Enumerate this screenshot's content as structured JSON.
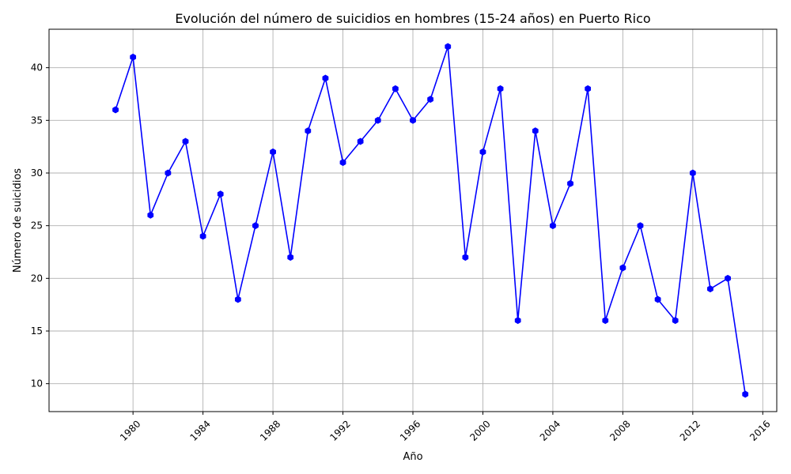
{
  "chart_data": {
    "type": "line",
    "title": "Evolución del número de suicidios en hombres (15-24 años) en Puerto Rico",
    "xlabel": "Año",
    "ylabel": "Número de suicidios",
    "xlim": [
      1975.2,
      2016.8
    ],
    "ylim": [
      7.35,
      43.65
    ],
    "x_ticks": [
      1980,
      1984,
      1988,
      1992,
      1996,
      2000,
      2004,
      2008,
      2012,
      2016
    ],
    "x_tick_labels": [
      "1980",
      "1984",
      "1988",
      "1992",
      "1996",
      "2000",
      "2004",
      "2008",
      "2012",
      "2016"
    ],
    "y_ticks": [
      10,
      15,
      20,
      25,
      30,
      35,
      40
    ],
    "y_tick_labels": [
      "10",
      "15",
      "20",
      "25",
      "30",
      "35",
      "40"
    ],
    "grid": true,
    "x_tick_rotation_deg": 45,
    "series": [
      {
        "color": "#0000ff",
        "marker": "hexagon",
        "x": [
          1979,
          1980,
          1981,
          1982,
          1983,
          1984,
          1985,
          1986,
          1987,
          1988,
          1989,
          1990,
          1991,
          1992,
          1993,
          1994,
          1995,
          1996,
          1997,
          1998,
          1999,
          2000,
          2001,
          2002,
          2003,
          2004,
          2005,
          2006,
          2007,
          2008,
          2009,
          2010,
          2011,
          2012,
          2013,
          2014,
          2015
        ],
        "values": [
          36,
          41,
          26,
          30,
          33,
          24,
          28,
          18,
          25,
          32,
          22,
          34,
          39,
          31,
          33,
          35,
          38,
          35,
          37,
          42,
          22,
          32,
          38,
          16,
          34,
          25,
          29,
          38,
          16,
          21,
          25,
          18,
          16,
          30,
          19,
          20,
          9
        ]
      }
    ]
  }
}
